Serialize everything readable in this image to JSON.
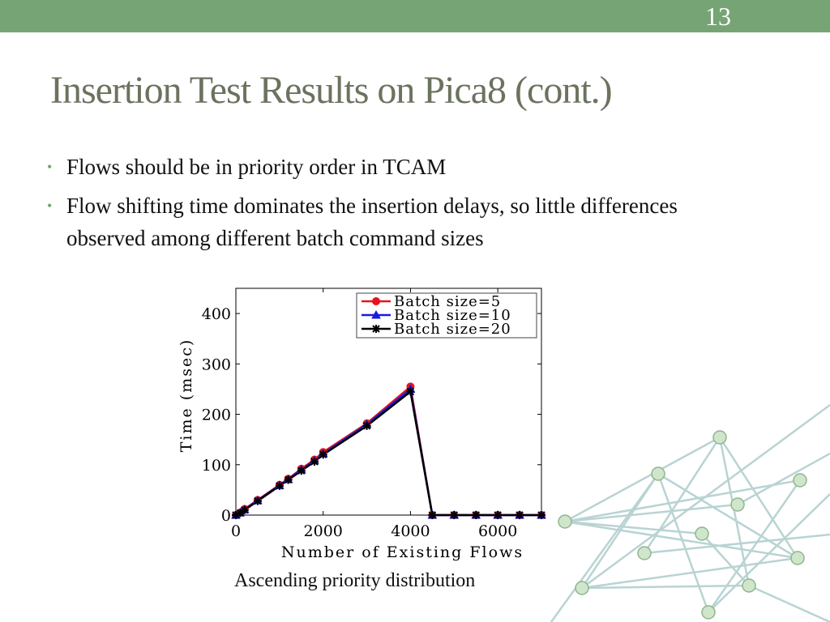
{
  "slide_number": "13",
  "title": "Insertion Test Results on Pica8 (cont.)",
  "bullets": [
    "Flows should be in priority order in TCAM",
    "Flow shifting time dominates the insertion delays, so little differences observed among different batch command sizes"
  ],
  "caption": "Ascending priority distribution",
  "chart_data": {
    "type": "line",
    "x_label": "Number of Existing Flows",
    "y_label": "Time (msec)",
    "x": [
      0,
      100,
      200,
      500,
      1000,
      1200,
      1500,
      1800,
      2000,
      3000,
      4000,
      4500,
      5000,
      5500,
      6000,
      6500,
      7000
    ],
    "series": [
      {
        "name": "Batch size=5",
        "color": "#e8141c",
        "marker": "circle",
        "values": [
          0,
          5,
          12,
          30,
          60,
          72,
          92,
          110,
          125,
          182,
          255,
          0,
          0,
          0,
          0,
          0,
          0
        ]
      },
      {
        "name": "Batch size=10",
        "color": "#1a1ae0",
        "marker": "triangle",
        "values": [
          0,
          5,
          11,
          29,
          59,
          71,
          90,
          108,
          122,
          180,
          250,
          0,
          0,
          0,
          0,
          0,
          0
        ]
      },
      {
        "name": "Batch size=20",
        "color": "#000000",
        "marker": "star",
        "values": [
          0,
          4,
          10,
          28,
          58,
          70,
          88,
          106,
          120,
          177,
          245,
          0,
          0,
          0,
          0,
          0,
          0
        ]
      }
    ],
    "xlim": [
      0,
      7000
    ],
    "ylim": [
      0,
      450
    ],
    "xticks": [
      0,
      2000,
      4000,
      6000
    ],
    "yticks": [
      0,
      100,
      200,
      300,
      400
    ],
    "legend": "upper right"
  }
}
